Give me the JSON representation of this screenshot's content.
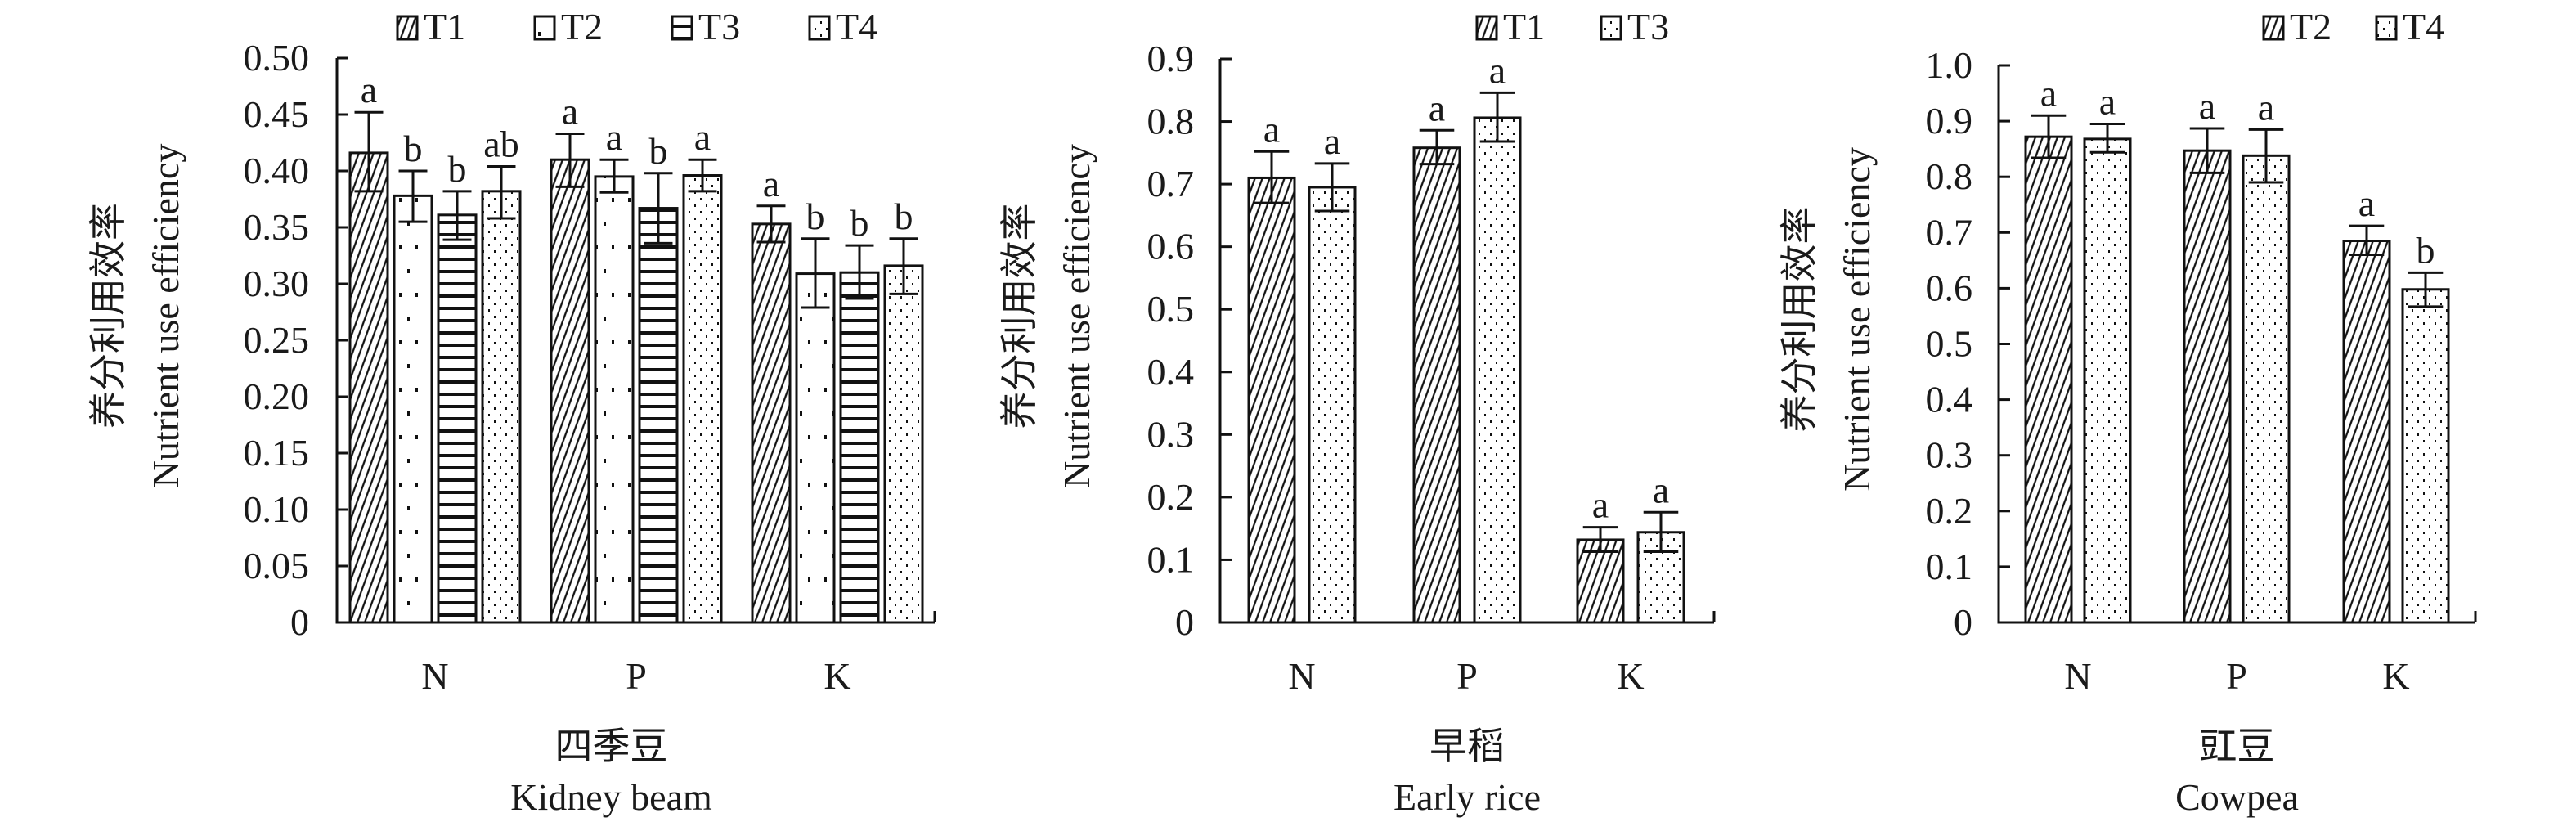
{
  "figure": {
    "y_label_cn": "养分利用效率",
    "y_label_en": "Nutrient use efficiency"
  },
  "chart_data": [
    {
      "type": "bar",
      "title_cn": "四季豆",
      "title_en": "Kidney beam",
      "ylabel_cn": "养分利用效率",
      "ylabel_en": "Nutrient use efficiency",
      "categories": [
        "N",
        "P",
        "K"
      ],
      "ylim": [
        0,
        0.5
      ],
      "yticks": [
        0,
        0.05,
        0.1,
        0.15,
        0.2,
        0.25,
        0.3,
        0.35,
        0.4,
        0.45,
        0.5
      ],
      "ytick_labels": [
        "0",
        "0.05",
        "0.10",
        "0.15",
        "0.20",
        "0.25",
        "0.30",
        "0.35",
        "0.40",
        "0.45",
        "0.50"
      ],
      "legend": [
        "T1",
        "T2",
        "T3",
        "T4"
      ],
      "legend_position": "top",
      "series": [
        {
          "name": "T1",
          "pattern": "diagonal",
          "values": [
            0.416,
            0.41,
            0.353
          ],
          "err_high": [
            0.452,
            0.433,
            0.369
          ],
          "err_low": [
            0.382,
            0.386,
            0.337
          ],
          "letters": [
            "a",
            "a",
            "a"
          ]
        },
        {
          "name": "T2",
          "pattern": "sparse-dots",
          "values": [
            0.378,
            0.395,
            0.309
          ],
          "err_high": [
            0.4,
            0.41,
            0.34
          ],
          "err_low": [
            0.355,
            0.381,
            0.279
          ],
          "letters": [
            "b",
            "a",
            "b"
          ]
        },
        {
          "name": "T3",
          "pattern": "horizontal",
          "values": [
            0.361,
            0.367,
            0.31
          ],
          "err_high": [
            0.382,
            0.398,
            0.334
          ],
          "err_low": [
            0.339,
            0.336,
            0.287
          ],
          "letters": [
            "b",
            "b",
            "b"
          ]
        },
        {
          "name": "T4",
          "pattern": "dense-dots",
          "values": [
            0.382,
            0.396,
            0.316
          ],
          "err_high": [
            0.404,
            0.41,
            0.34
          ],
          "err_low": [
            0.358,
            0.382,
            0.291
          ],
          "letters": [
            "ab",
            "a",
            "b"
          ]
        }
      ]
    },
    {
      "type": "bar",
      "title_cn": "早稻",
      "title_en": "Early rice",
      "ylabel_cn": "养分利用效率",
      "ylabel_en": "Nutrient use efficiency",
      "categories": [
        "N",
        "P",
        "K"
      ],
      "ylim": [
        0,
        0.9
      ],
      "yticks": [
        0,
        0.1,
        0.2,
        0.3,
        0.4,
        0.5,
        0.6,
        0.7,
        0.8,
        0.9
      ],
      "ytick_labels": [
        "0",
        "0.1",
        "0.2",
        "0.3",
        "0.4",
        "0.5",
        "0.6",
        "0.7",
        "0.8",
        "0.9"
      ],
      "legend": [
        "T1",
        "T3"
      ],
      "legend_position": "top-right",
      "series": [
        {
          "name": "T1",
          "pattern": "diagonal",
          "values": [
            0.71,
            0.758,
            0.132
          ],
          "err_high": [
            0.752,
            0.786,
            0.152
          ],
          "err_low": [
            0.67,
            0.732,
            0.113
          ],
          "letters": [
            "a",
            "a",
            "a"
          ]
        },
        {
          "name": "T3",
          "pattern": "dense-dots",
          "values": [
            0.695,
            0.806,
            0.144
          ],
          "err_high": [
            0.733,
            0.846,
            0.176
          ],
          "err_low": [
            0.657,
            0.768,
            0.113
          ],
          "letters": [
            "a",
            "a",
            "a"
          ]
        }
      ]
    },
    {
      "type": "bar",
      "title_cn": "豇豆",
      "title_en": "Cowpea",
      "ylabel_cn": "养分利用效率",
      "ylabel_en": "Nutrient use efficiency",
      "categories": [
        "N",
        "P",
        "K"
      ],
      "ylim": [
        0,
        1.0
      ],
      "yticks": [
        0,
        0.1,
        0.2,
        0.3,
        0.4,
        0.5,
        0.6,
        0.7,
        0.8,
        0.9,
        1.0
      ],
      "ytick_labels": [
        "0",
        "0.1",
        "0.2",
        "0.3",
        "0.4",
        "0.5",
        "0.6",
        "0.7",
        "0.8",
        "0.9",
        "1.0"
      ],
      "legend": [
        "T2",
        "T4"
      ],
      "legend_position": "top-right",
      "series": [
        {
          "name": "T2",
          "pattern": "diagonal",
          "values": [
            0.872,
            0.847,
            0.685
          ],
          "err_high": [
            0.91,
            0.887,
            0.712
          ],
          "err_low": [
            0.834,
            0.807,
            0.66
          ],
          "letters": [
            "a",
            "a",
            "a"
          ]
        },
        {
          "name": "T4",
          "pattern": "dense-dots",
          "values": [
            0.868,
            0.838,
            0.598
          ],
          "err_high": [
            0.895,
            0.885,
            0.628
          ],
          "err_low": [
            0.844,
            0.79,
            0.567
          ],
          "letters": [
            "a",
            "a",
            "b"
          ]
        }
      ]
    }
  ]
}
